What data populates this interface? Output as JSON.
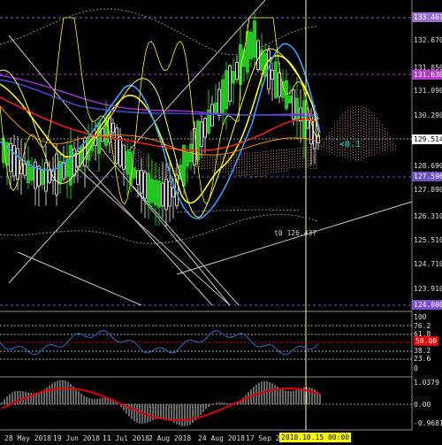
{
  "price_axis": {
    "labels": [
      "132.670",
      "131.850",
      "131.090",
      "130.290",
      "128.690",
      "127.890",
      "126.310",
      "125.510",
      "124.710",
      "123.910"
    ],
    "highlighted": [
      {
        "text": "133.467",
        "color": "#9a6fd6"
      },
      {
        "text": "131.630",
        "color": "#b23bd0"
      },
      {
        "text": "129.514",
        "color": "#000000"
      },
      {
        "text": "127.596",
        "color": "#6a53c2"
      },
      {
        "text": "124.080",
        "color": "#7b4fd6"
      }
    ]
  },
  "annotations": {
    "price_note": "t0 126.437",
    "cloud_label": "<0.1"
  },
  "rsi_axis": {
    "labels": [
      "100",
      "76.2",
      "61.8",
      "50.00",
      "38.2",
      "23.6",
      "0"
    ]
  },
  "macd_axis": {
    "labels": [
      "1.0379",
      "0.00",
      "-0.9681"
    ]
  },
  "time_axis": {
    "labels": [
      "28 May 2018",
      "19 Jun 2018",
      "11 Jul 2018",
      "2 Aug 2018",
      "24 Aug 2018",
      "17 Sep 20"
    ],
    "cursor_label": "2018.10.15 00:00"
  },
  "colors": {
    "background": "#000000",
    "bull": "#22c322",
    "bear": "#c7c7c7",
    "ma_yellow": "#ffff00",
    "ma_red": "#e82020",
    "ma_blue": "#3aa0ff",
    "ma_purple": "#9932cc",
    "cloud": "#c08060",
    "cursor": "#ffffa0",
    "rsi_line": "#2f6dd0",
    "macd_signal": "#e00000"
  }
}
